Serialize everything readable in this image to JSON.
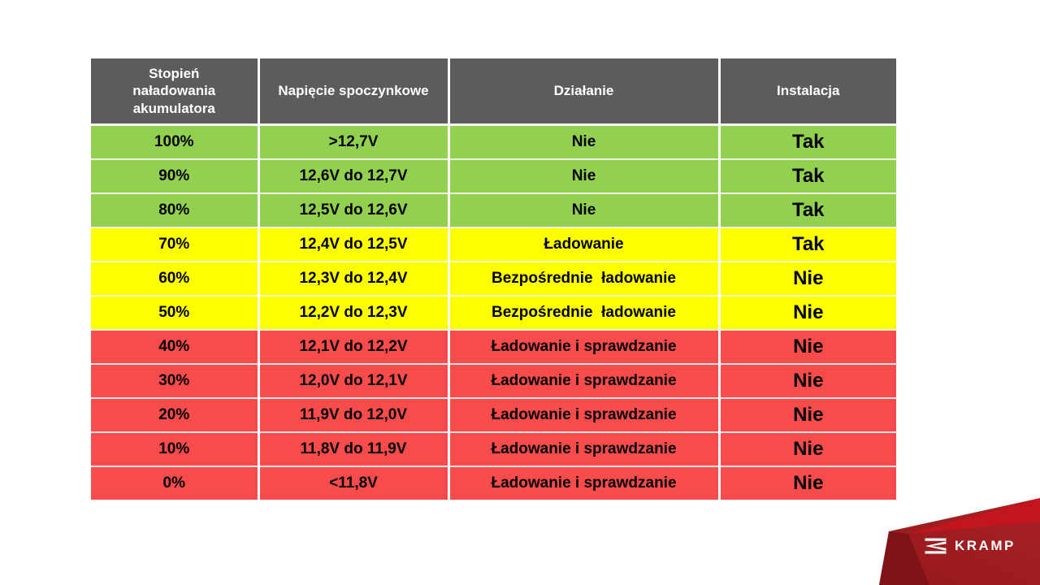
{
  "table": {
    "columns": [
      "Stopień naładowania akumulatora",
      "Napięcie spoczynkowe",
      "Działanie",
      "Instalacja"
    ],
    "rows": [
      {
        "charge": "100%",
        "voltage": ">12,7V",
        "action": "Nie",
        "installation": "Tak",
        "status": "green"
      },
      {
        "charge": "90%",
        "voltage": "12,6V do 12,7V",
        "action": "Nie",
        "installation": "Tak",
        "status": "green"
      },
      {
        "charge": "80%",
        "voltage": "12,5V do 12,6V",
        "action": "Nie",
        "installation": "Tak",
        "status": "green"
      },
      {
        "charge": "70%",
        "voltage": "12,4V do 12,5V",
        "action": "Ładowanie",
        "installation": "Tak",
        "status": "yellow"
      },
      {
        "charge": "60%",
        "voltage": "12,3V do 12,4V",
        "action": "Bezpośrednie  ładowanie",
        "installation": "Nie",
        "status": "yellow"
      },
      {
        "charge": "50%",
        "voltage": "12,2V do 12,3V",
        "action": "Bezpośrednie  ładowanie",
        "installation": "Nie",
        "status": "yellow"
      },
      {
        "charge": "40%",
        "voltage": "12,1V do 12,2V",
        "action": "Ładowanie i sprawdzanie",
        "installation": "Nie",
        "status": "red"
      },
      {
        "charge": "30%",
        "voltage": "12,0V do 12,1V",
        "action": "Ładowanie i sprawdzanie",
        "installation": "Nie",
        "status": "red"
      },
      {
        "charge": "20%",
        "voltage": "11,9V do 12,0V",
        "action": "Ładowanie i sprawdzanie",
        "installation": "Nie",
        "status": "red"
      },
      {
        "charge": "10%",
        "voltage": "11,8V do 11,9V",
        "action": "Ładowanie i sprawdzanie",
        "installation": "Nie",
        "status": "red"
      },
      {
        "charge": "0%",
        "voltage": "<11,8V",
        "action": "Ładowanie i sprawdzanie",
        "installation": "Nie",
        "status": "red"
      }
    ],
    "status_colors": {
      "header": "#5c5c5c",
      "green": "#92d050",
      "yellow": "#ffff00",
      "red": "#f84b4b"
    }
  },
  "logo": {
    "brand": "KRAMP",
    "icon": "kramp-k-icon",
    "banner_colors": {
      "wedge": "#7e1417",
      "body_left": "#96191d",
      "body_right": "#a82023",
      "bright": "#c2151e"
    }
  }
}
